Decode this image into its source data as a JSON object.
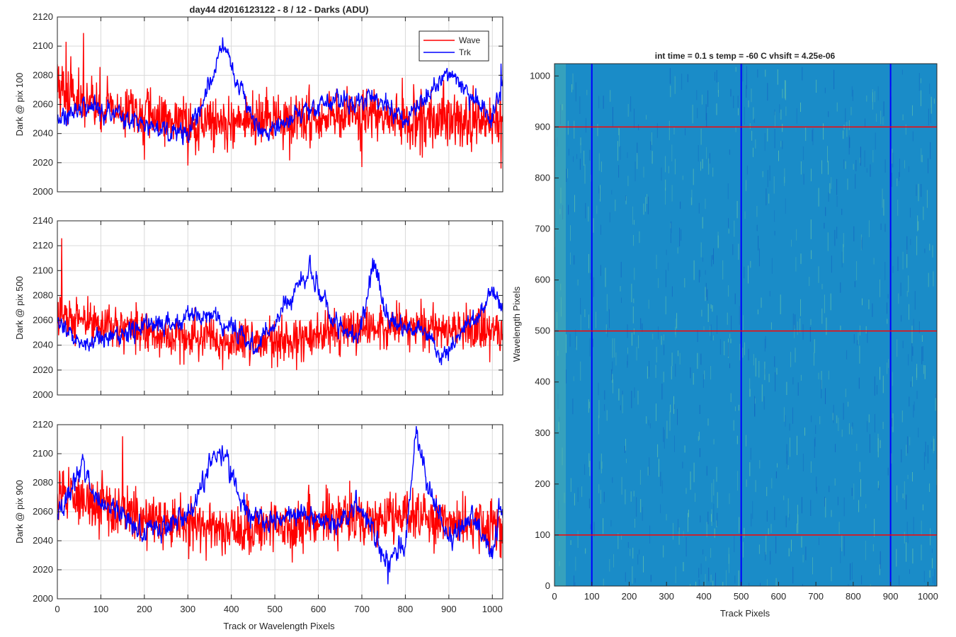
{
  "figure": {
    "left_title": "day44 d2016123122 - 8 / 12 - Darks (ADU)",
    "left_xlabel": "Track or Wavelength Pixels",
    "right_title": "int time = 0.1 s   temp = -60 C   vhsift = 4.25e-06",
    "right_xlabel": "Track Pixels",
    "right_ylabel": "Wavelength Pixels"
  },
  "colors": {
    "wave": "#ff0000",
    "trk": "#0000ff",
    "grid": "#d9d9d9",
    "axis": "#262626",
    "image_base": "#1a8cc8",
    "image_bright": "#6cc9a8",
    "image_dark": "#1460c0"
  },
  "chart_data": [
    {
      "type": "line",
      "ylabel": "Dark @ pix 100",
      "xlim": [
        0,
        1024
      ],
      "ylim": [
        2000,
        2120
      ],
      "xticks": [
        0,
        100,
        200,
        300,
        400,
        500,
        600,
        700,
        800,
        900,
        1000
      ],
      "yticks": [
        2000,
        2020,
        2040,
        2060,
        2080,
        2100,
        2120
      ],
      "legend": {
        "position": "top-right",
        "entries": [
          "Wave",
          "Trk"
        ]
      },
      "series": [
        {
          "name": "Wave",
          "color": "#ff0000",
          "mean": 2050,
          "noise": 14,
          "profile": [
            [
              0,
              2075
            ],
            [
              40,
              2062
            ],
            [
              150,
              2055
            ],
            [
              300,
              2048
            ],
            [
              500,
              2048
            ],
            [
              700,
              2052
            ],
            [
              1024,
              2046
            ]
          ],
          "spikes": [
            [
              20,
              2103
            ],
            [
              60,
              2109
            ],
            [
              200,
              2022
            ],
            [
              300,
              2018
            ],
            [
              700,
              2017
            ],
            [
              1020,
              2016
            ]
          ]
        },
        {
          "name": "Trk",
          "color": "#0000ff",
          "mean": 2050,
          "noise": 6,
          "profile": [
            [
              0,
              2050
            ],
            [
              80,
              2060
            ],
            [
              180,
              2048
            ],
            [
              300,
              2038
            ],
            [
              360,
              2080
            ],
            [
              380,
              2102
            ],
            [
              420,
              2070
            ],
            [
              470,
              2040
            ],
            [
              600,
              2060
            ],
            [
              720,
              2065
            ],
            [
              800,
              2050
            ],
            [
              900,
              2083
            ],
            [
              1000,
              2050
            ],
            [
              1024,
              2075
            ]
          ],
          "spikes": [
            [
              380,
              2106
            ],
            [
              1020,
              2088
            ]
          ]
        }
      ]
    },
    {
      "type": "line",
      "ylabel": "Dark @ pix 500",
      "xlim": [
        0,
        1024
      ],
      "ylim": [
        2000,
        2140
      ],
      "xticks": [
        0,
        100,
        200,
        300,
        400,
        500,
        600,
        700,
        800,
        900,
        1000
      ],
      "yticks": [
        2000,
        2020,
        2040,
        2060,
        2080,
        2100,
        2120,
        2140
      ],
      "series": [
        {
          "name": "Wave",
          "color": "#ff0000",
          "mean": 2052,
          "noise": 14,
          "profile": [
            [
              0,
              2065
            ],
            [
              60,
              2060
            ],
            [
              200,
              2050
            ],
            [
              400,
              2042
            ],
            [
              600,
              2050
            ],
            [
              800,
              2055
            ],
            [
              1024,
              2050
            ]
          ],
          "spikes": [
            [
              10,
              2126
            ],
            [
              380,
              2020
            ],
            [
              550,
              2020
            ]
          ]
        },
        {
          "name": "Trk",
          "color": "#0000ff",
          "mean": 2048,
          "noise": 7,
          "profile": [
            [
              0,
              2060
            ],
            [
              60,
              2040
            ],
            [
              200,
              2055
            ],
            [
              350,
              2065
            ],
            [
              460,
              2040
            ],
            [
              580,
              2103
            ],
            [
              630,
              2060
            ],
            [
              690,
              2045
            ],
            [
              730,
              2105
            ],
            [
              760,
              2060
            ],
            [
              850,
              2050
            ],
            [
              880,
              2030
            ],
            [
              960,
              2060
            ],
            [
              1000,
              2085
            ],
            [
              1024,
              2070
            ]
          ],
          "spikes": [
            [
              725,
              2110
            ]
          ]
        }
      ]
    },
    {
      "type": "line",
      "ylabel": "Dark @ pix 900",
      "xlim": [
        0,
        1024
      ],
      "ylim": [
        2000,
        2120
      ],
      "xticks": [
        0,
        100,
        200,
        300,
        400,
        500,
        600,
        700,
        800,
        900,
        1000
      ],
      "yticks": [
        2000,
        2020,
        2040,
        2060,
        2080,
        2100,
        2120
      ],
      "xlabel": "Track or Wavelength Pixels",
      "series": [
        {
          "name": "Wave",
          "color": "#ff0000",
          "mean": 2058,
          "noise": 14,
          "profile": [
            [
              0,
              2075
            ],
            [
              100,
              2065
            ],
            [
              200,
              2055
            ],
            [
              400,
              2048
            ],
            [
              600,
              2055
            ],
            [
              800,
              2055
            ],
            [
              1024,
              2050
            ]
          ],
          "spikes": [
            [
              150,
              2112
            ],
            [
              540,
              2025
            ],
            [
              1020,
              2028
            ]
          ]
        },
        {
          "name": "Trk",
          "color": "#0000ff",
          "mean": 2055,
          "noise": 7,
          "profile": [
            [
              0,
              2060
            ],
            [
              60,
              2090
            ],
            [
              100,
              2065
            ],
            [
              200,
              2048
            ],
            [
              300,
              2055
            ],
            [
              360,
              2100
            ],
            [
              390,
              2095
            ],
            [
              440,
              2055
            ],
            [
              500,
              2055
            ],
            [
              580,
              2060
            ],
            [
              620,
              2050
            ],
            [
              700,
              2065
            ],
            [
              760,
              2020
            ],
            [
              800,
              2040
            ],
            [
              825,
              2112
            ],
            [
              850,
              2080
            ],
            [
              900,
              2040
            ],
            [
              960,
              2055
            ],
            [
              1000,
              2030
            ],
            [
              1024,
              2065
            ]
          ],
          "spikes": [
            [
              825,
              2119
            ],
            [
              760,
              2010
            ]
          ]
        }
      ]
    },
    {
      "type": "heatmap",
      "title": "int time = 0.1 s   temp = -60 C   vhsift = 4.25e-06",
      "xlabel": "Track Pixels",
      "ylabel": "Wavelength Pixels",
      "xlim": [
        0,
        1024
      ],
      "ylim": [
        0,
        1024
      ],
      "xticks": [
        0,
        100,
        200,
        300,
        400,
        500,
        600,
        700,
        800,
        900,
        1000
      ],
      "yticks": [
        0,
        100,
        200,
        300,
        400,
        500,
        600,
        700,
        800,
        900,
        1000
      ],
      "vertical_markers": [
        100,
        500,
        900
      ],
      "horizontal_markers": [
        100,
        500,
        900
      ],
      "vertical_marker_color": "#0000ff",
      "horizontal_marker_color": "#ff0000"
    }
  ]
}
